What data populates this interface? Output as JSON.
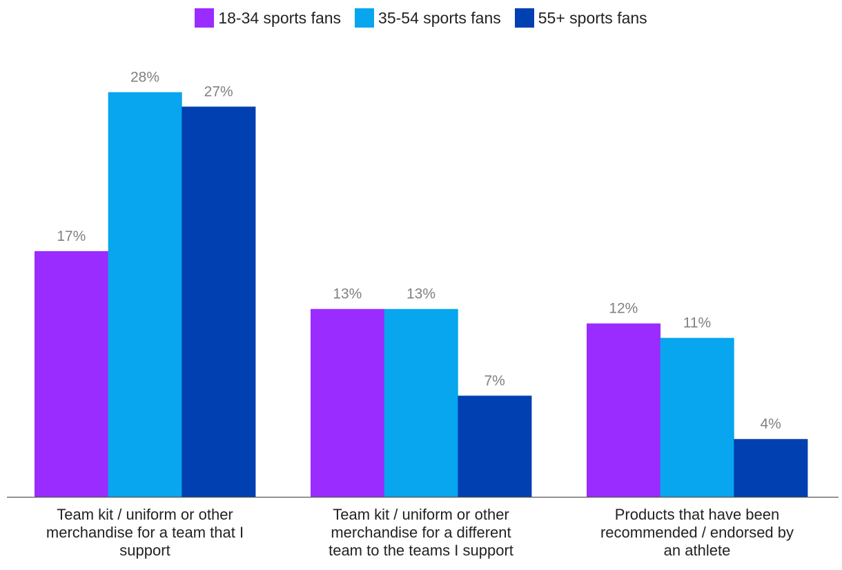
{
  "chart_data": {
    "type": "bar",
    "categories": [
      "Team kit / uniform or other merchandise for a team that I support",
      "Team kit / uniform or other merchandise for a different team to the teams I support",
      "Products that have been recommended / endorsed by an athlete"
    ],
    "category_lines": [
      [
        "Team kit / uniform or other",
        "merchandise for a team that I",
        "support"
      ],
      [
        "Team kit / uniform or other",
        "merchandise for a different",
        "team to the teams I support"
      ],
      [
        "Products that have been",
        "recommended / endorsed by",
        "an athlete"
      ]
    ],
    "series": [
      {
        "name": "18-34 sports fans",
        "values": [
          17,
          13,
          12
        ],
        "labels": [
          "17%",
          "13%",
          "12%"
        ],
        "color": "#9b2cff"
      },
      {
        "name": "35-54 sports fans",
        "values": [
          28,
          13,
          11
        ],
        "labels": [
          "28%",
          "13%",
          "11%"
        ],
        "color": "#08a6ee"
      },
      {
        "name": "55+ sports fans",
        "values": [
          27,
          7,
          4
        ],
        "labels": [
          "27%",
          "7%",
          "4%"
        ],
        "color": "#0040b0"
      }
    ],
    "ylim": [
      0,
      28.6
    ],
    "unit": "%",
    "legend_position": "top-center",
    "grid": false,
    "title": "",
    "xlabel": "",
    "ylabel": ""
  }
}
